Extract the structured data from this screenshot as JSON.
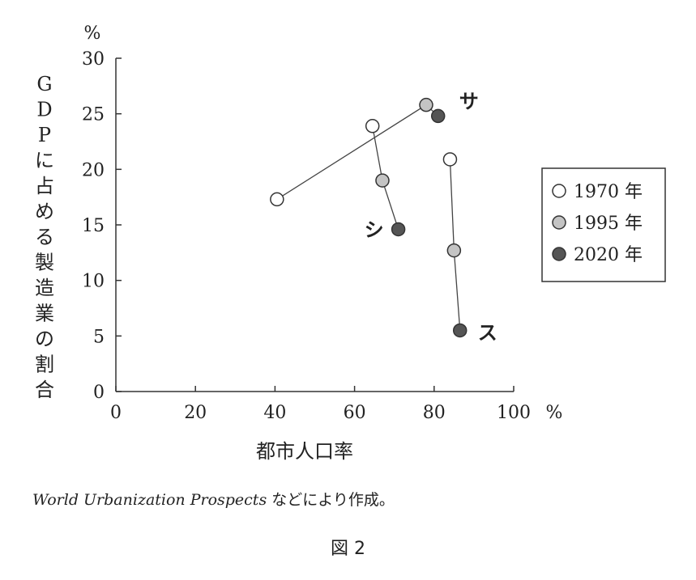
{
  "chart_data": {
    "type": "scatter",
    "ylabel": "GDPに占める製造業の割合",
    "yunit": "%",
    "xlabel": "都市人口率",
    "xunit": "%",
    "xlim": [
      0,
      100
    ],
    "ylim": [
      0,
      30
    ],
    "xticks": [
      "0",
      "20",
      "40",
      "60",
      "80",
      "100"
    ],
    "yticks": [
      "0",
      "5",
      "10",
      "15",
      "20",
      "25",
      "30"
    ],
    "grid": false,
    "legend_position": "right",
    "series": [
      {
        "name": "1970 年",
        "color": "#ffffff"
      },
      {
        "name": "1995 年",
        "color": "#c4c4c4"
      },
      {
        "name": "2020 年",
        "color": "#555555"
      }
    ],
    "countries": [
      {
        "label": "サ",
        "points": [
          {
            "x": 40.5,
            "y": 17.3
          },
          {
            "x": 78,
            "y": 25.8
          },
          {
            "x": 81,
            "y": 24.8
          }
        ]
      },
      {
        "label": "シ",
        "points": [
          {
            "x": 64.5,
            "y": 23.9
          },
          {
            "x": 67,
            "y": 19.0
          },
          {
            "x": 71,
            "y": 14.6
          }
        ]
      },
      {
        "label": "ス",
        "points": [
          {
            "x": 84,
            "y": 20.9
          },
          {
            "x": 85,
            "y": 12.7
          },
          {
            "x": 86.5,
            "y": 5.5
          }
        ]
      }
    ]
  },
  "source_italic": "World Urbanization Prospects",
  "source_rest": "などにより作成。",
  "figure_label": "図 2"
}
